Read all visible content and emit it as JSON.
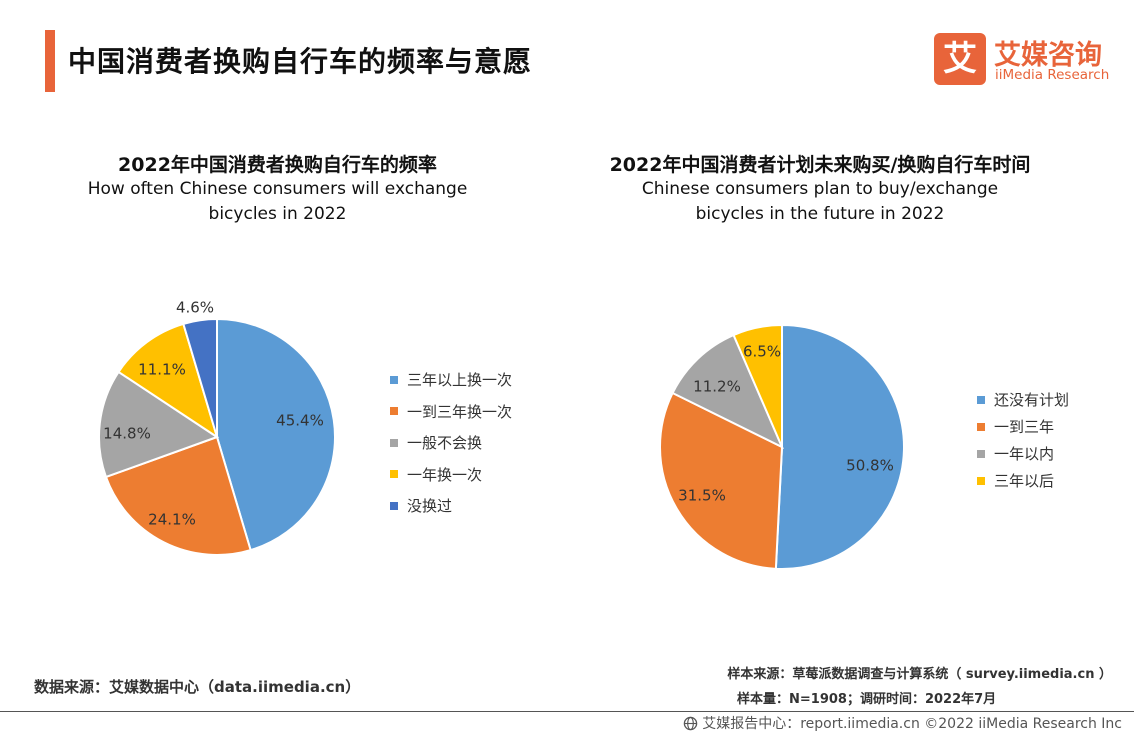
{
  "header": {
    "title": "中国消费者换购自行车的频率与意愿",
    "logo_mark": "艾",
    "logo_cn": "艾媒咨询",
    "logo_en": "iiMedia Research",
    "accent_color": "#e8643a"
  },
  "chart_data": [
    {
      "type": "pie",
      "title": "2022年中国消费者换购自行车的频率",
      "subtitle": "How often Chinese consumers will exchange bicycles in 2022",
      "categories": [
        "三年以上换一次",
        "一到三年换一次",
        "一般不会换",
        "一年换一次",
        "没换过"
      ],
      "values": [
        45.4,
        24.1,
        14.8,
        11.1,
        4.6
      ],
      "labels": [
        "45.4%",
        "24.1%",
        "14.8%",
        "11.1%",
        "4.6%"
      ],
      "colors": [
        "#5b9bd5",
        "#ed7d31",
        "#a5a5a5",
        "#ffc000",
        "#4472c4"
      ],
      "legend_position": "right"
    },
    {
      "type": "pie",
      "title": "2022年中国消费者计划未来购买/换购自行车时间",
      "subtitle": "Chinese consumers plan to buy/exchange bicycles in the future in 2022",
      "categories": [
        "还没有计划",
        "一到三年",
        "一年以内",
        "三年以后"
      ],
      "values": [
        50.8,
        31.5,
        11.2,
        6.5
      ],
      "labels": [
        "50.8%",
        "31.5%",
        "11.2%",
        "6.5%"
      ],
      "colors": [
        "#5b9bd5",
        "#ed7d31",
        "#a5a5a5",
        "#ffc000"
      ],
      "legend_position": "right"
    }
  ],
  "footer": {
    "source_left": "数据来源：艾媒数据中心（data.iimedia.cn）",
    "sample_source": "样本来源：草莓派数据调查与计算系统（ survey.iimedia.cn ）",
    "sample_size": "样本量：N=1908；调研时间：2022年7月",
    "credit": "艾媒报告中心：report.iimedia.cn   ©2022  iiMedia Research  Inc"
  }
}
